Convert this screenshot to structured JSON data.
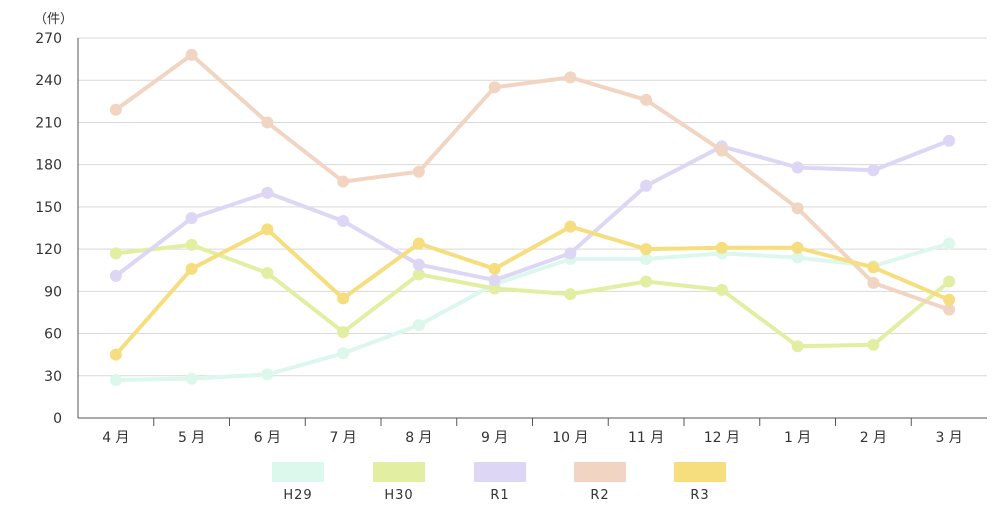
{
  "chart_data": {
    "type": "line",
    "unit_label": "（件）",
    "categories": [
      "4 月",
      "5 月",
      "6 月",
      "7 月",
      "8 月",
      "9 月",
      "10 月",
      "11 月",
      "12 月",
      "1 月",
      "2 月",
      "3 月"
    ],
    "ylim": [
      0,
      270
    ],
    "yticks": [
      0,
      30,
      60,
      90,
      120,
      150,
      180,
      210,
      240,
      270
    ],
    "grid": true,
    "legend_position": "bottom",
    "series": [
      {
        "name": "H29",
        "color": "#dcf7ec",
        "values": [
          27,
          28,
          31,
          46,
          66,
          95,
          113,
          113,
          117,
          114,
          108,
          124
        ]
      },
      {
        "name": "H30",
        "color": "#e2efa2",
        "values": [
          117,
          123,
          103,
          61,
          102,
          92,
          88,
          97,
          91,
          51,
          52,
          97
        ]
      },
      {
        "name": "R1",
        "color": "#ddd6f4",
        "values": [
          101,
          142,
          160,
          140,
          109,
          98,
          117,
          165,
          193,
          178,
          176,
          197
        ]
      },
      {
        "name": "R2",
        "color": "#f1d5c2",
        "values": [
          219,
          258,
          210,
          168,
          175,
          235,
          242,
          226,
          190,
          149,
          96,
          77
        ]
      },
      {
        "name": "R3",
        "color": "#f6de7e",
        "values": [
          45,
          106,
          134,
          85,
          124,
          106,
          136,
          120,
          121,
          121,
          107,
          84
        ]
      }
    ]
  }
}
